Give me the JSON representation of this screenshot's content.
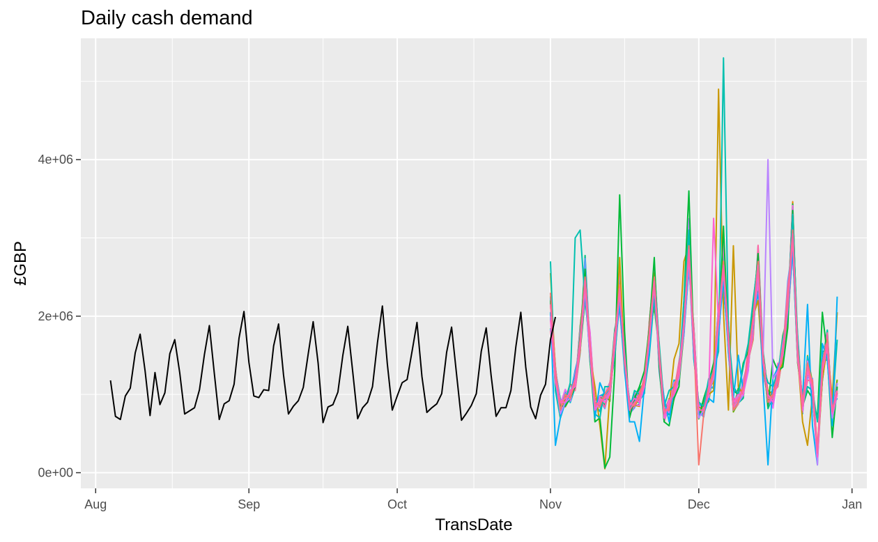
{
  "chart_data": {
    "type": "line",
    "title": "Daily cash demand",
    "xlabel": "TransDate",
    "ylabel": "£GBP",
    "x_ticks": [
      "Aug",
      "Sep",
      "Oct",
      "Nov",
      "Dec",
      "Jan"
    ],
    "y_ticks": [
      "0e+00",
      "2e+06",
      "4e+06"
    ],
    "x_range": [
      "2018-07-29",
      "2019-01-04"
    ],
    "ylim": [
      -200000,
      5550000
    ],
    "grid": true,
    "legend": "none",
    "history": {
      "color": "#000000",
      "start_date": "2018-08-04",
      "values": [
        1180000,
        720000,
        680000,
        980000,
        1080000,
        1530000,
        1770000,
        1300000,
        730000,
        1280000,
        870000,
        1020000,
        1520000,
        1700000,
        1280000,
        750000,
        790000,
        830000,
        1060000,
        1510000,
        1880000,
        1270000,
        680000,
        880000,
        920000,
        1130000,
        1720000,
        2060000,
        1410000,
        980000,
        960000,
        1060000,
        1050000,
        1620000,
        1900000,
        1250000,
        750000,
        850000,
        920000,
        1090000,
        1520000,
        1930000,
        1400000,
        640000,
        840000,
        870000,
        1030000,
        1500000,
        1870000,
        1290000,
        690000,
        830000,
        900000,
        1100000,
        1660000,
        2130000,
        1390000,
        800000,
        980000,
        1150000,
        1190000,
        1550000,
        1920000,
        1230000,
        770000,
        830000,
        880000,
        1010000,
        1540000,
        1860000,
        1260000,
        670000,
        760000,
        860000,
        1010000,
        1550000,
        1850000,
        1240000,
        720000,
        830000,
        830000,
        1050000,
        1610000,
        2050000,
        1350000,
        840000,
        690000,
        990000,
        1130000,
        1700000,
        1990000
      ]
    },
    "forecast": {
      "start_date": "2018-11-01",
      "base": [
        2100000,
        1250000,
        850000,
        950000,
        1000000,
        1150000,
        1650000,
        2450000,
        1600000,
        850000,
        900000,
        950000,
        1050000,
        1650000,
        2350000,
        1450000,
        820000,
        900000,
        950000,
        1150000,
        1750000,
        2450000,
        1500000,
        750000,
        850000,
        1050000,
        1250000,
        1900000,
        2850000,
        1650000,
        780000,
        820000,
        1050000,
        1250000,
        1950000,
        2650000,
        1700000,
        850000,
        950000,
        1050000,
        1450000,
        1950000,
        2650000,
        1450000,
        950000,
        950000,
        1250000,
        1550000,
        2150000,
        3050000,
        1550000,
        850000,
        1350000,
        1100000,
        250000,
        1350000,
        1650000,
        780000,
        1050000
      ],
      "series_colors": [
        "#F8766D",
        "#E58700",
        "#C99800",
        "#A3A500",
        "#6BB100",
        "#00BA38",
        "#00BF7D",
        "#00C0AF",
        "#00BCD8",
        "#00B0F6",
        "#619CFF",
        "#B983FF",
        "#E76BF3",
        "#FD61D1",
        "#FF67A4"
      ],
      "series": [
        {
          "color": "#C99800",
          "values": [
            2550000,
            1250000,
            700000,
            950000,
            1050000,
            1100000,
            1550000,
            2400000,
            1500000,
            1100000,
            600000,
            50000,
            1000000,
            1550000,
            2750000,
            1400000,
            850000,
            850000,
            950000,
            1100000,
            1600000,
            2550000,
            1450000,
            850000,
            850000,
            1450000,
            1650000,
            2700000,
            2900000,
            1550000,
            700000,
            900000,
            1000000,
            1050000,
            4900000,
            2050000,
            800000,
            2900000,
            1100000,
            1000000,
            1500000,
            2000000,
            2200000,
            1300000,
            1050000,
            1000000,
            1250000,
            1400000,
            1950000,
            3000000,
            1500000,
            650000,
            350000,
            1000000,
            150000,
            1200000,
            1600000,
            950000,
            2050000
          ]
        },
        {
          "color": "#00BA38",
          "values": [
            2200000,
            1150000,
            850000,
            850000,
            950000,
            1100000,
            1750000,
            2600000,
            1450000,
            650000,
            700000,
            60000,
            200000,
            1300000,
            3550000,
            1800000,
            700000,
            950000,
            1100000,
            1300000,
            1850000,
            2750000,
            1350000,
            650000,
            600000,
            950000,
            1100000,
            2200000,
            3600000,
            1600000,
            700000,
            950000,
            1150000,
            1400000,
            1800000,
            3150000,
            1650000,
            1050000,
            1000000,
            1400000,
            1550000,
            2050000,
            2800000,
            1500000,
            850000,
            1450000,
            1300000,
            1350000,
            1850000,
            3350000,
            1600000,
            850000,
            1050000,
            950000,
            700000,
            2050000,
            1500000,
            450000,
            1100000
          ]
        },
        {
          "color": "#00C0AF",
          "values": [
            2700000,
            1050000,
            700000,
            900000,
            1150000,
            3000000,
            3100000,
            2200000,
            1600000,
            750000,
            700000,
            1100000,
            1100000,
            1500000,
            2200000,
            1550000,
            800000,
            1050000,
            1000000,
            1050000,
            1500000,
            2250000,
            1650000,
            850000,
            1050000,
            1100000,
            1300000,
            2200000,
            3100000,
            1450000,
            900000,
            850000,
            1200000,
            1300000,
            1550000,
            5300000,
            1800000,
            1100000,
            1000000,
            1350000,
            1650000,
            2200000,
            2700000,
            1350000,
            1150000,
            1100000,
            1300000,
            1500000,
            2100000,
            3300000,
            1700000,
            850000,
            1100000,
            1050000,
            650000,
            1550000,
            1550000,
            800000,
            1700000
          ]
        },
        {
          "color": "#00B0F6",
          "values": [
            2050000,
            350000,
            700000,
            900000,
            1000000,
            1250000,
            1650000,
            2300000,
            1550000,
            700000,
            1150000,
            1000000,
            1050000,
            1600000,
            2150000,
            1300000,
            650000,
            650000,
            400000,
            1100000,
            1550000,
            2400000,
            1450000,
            950000,
            650000,
            1100000,
            1250000,
            1800000,
            2750000,
            1500000,
            750000,
            750000,
            950000,
            900000,
            1800000,
            2450000,
            1550000,
            950000,
            1500000,
            1050000,
            1450000,
            1850000,
            2600000,
            1150000,
            100000,
            1200000,
            1350000,
            1500000,
            2050000,
            2850000,
            1500000,
            950000,
            2150000,
            600000,
            100000,
            1650000,
            1450000,
            600000,
            2250000
          ]
        },
        {
          "color": "#B983FF",
          "values": [
            2000000,
            1200000,
            750000,
            900000,
            950000,
            1200000,
            1600000,
            2350000,
            1500000,
            800000,
            900000,
            950000,
            1000000,
            1600000,
            2300000,
            1450000,
            800000,
            900000,
            950000,
            1150000,
            1700000,
            2400000,
            1500000,
            700000,
            900000,
            1050000,
            1200000,
            1850000,
            2750000,
            1600000,
            700000,
            800000,
            1050000,
            1200000,
            1900000,
            2600000,
            1650000,
            850000,
            900000,
            1000000,
            1400000,
            1900000,
            2550000,
            1450000,
            4000000,
            1200000,
            1300000,
            1500000,
            2100000,
            3050000,
            1550000,
            800000,
            1300000,
            1050000,
            100000,
            1350000,
            1600000,
            700000,
            1000000
          ]
        },
        {
          "color": "#F8766D",
          "values": [
            2300000,
            1300000,
            800000,
            1000000,
            950000,
            1150000,
            1700000,
            2500000,
            1650000,
            900000,
            850000,
            1000000,
            1100000,
            1700000,
            2400000,
            1400000,
            900000,
            850000,
            1000000,
            1200000,
            1800000,
            2500000,
            1550000,
            800000,
            800000,
            1100000,
            1300000,
            1900000,
            2900000,
            1700000,
            100000,
            750000,
            1100000,
            1300000,
            2000000,
            2700000,
            1750000,
            800000,
            900000,
            1100000,
            1500000,
            2000000,
            2700000,
            1500000,
            900000,
            1000000,
            1200000,
            1600000,
            2200000,
            3100000,
            1600000,
            900000,
            1400000,
            1150000,
            300000,
            1400000,
            1700000,
            800000,
            1050000
          ]
        },
        {
          "color": "#FD61D1",
          "values": [
            1950000,
            1150000,
            900000,
            900000,
            1050000,
            1100000,
            1600000,
            2400000,
            1550000,
            800000,
            950000,
            900000,
            1000000,
            1600000,
            2300000,
            1500000,
            850000,
            950000,
            900000,
            1100000,
            1700000,
            2400000,
            1450000,
            700000,
            900000,
            1000000,
            1300000,
            1950000,
            2800000,
            1600000,
            800000,
            800000,
            1000000,
            3250000,
            1900000,
            2600000,
            1650000,
            900000,
            1000000,
            1000000,
            1400000,
            1900000,
            2600000,
            1400000,
            1000000,
            900000,
            1300000,
            1500000,
            2100000,
            3000000,
            1500000,
            800000,
            1300000,
            1050000,
            200000,
            1300000,
            1600000,
            750000,
            1000000
          ]
        },
        {
          "color": "#FF67A4",
          "values": [
            2150000,
            1200000,
            900000,
            950000,
            1000000,
            1200000,
            1650000,
            2450000,
            1600000,
            850000,
            900000,
            950000,
            1050000,
            1650000,
            2350000,
            1450000,
            800000,
            900000,
            950000,
            1150000,
            1750000,
            2450000,
            1500000,
            750000,
            850000,
            1050000,
            1250000,
            1900000,
            2850000,
            1650000,
            800000,
            800000,
            1050000,
            1250000,
            1950000,
            2650000,
            1700000,
            850000,
            950000,
            1050000,
            1450000,
            1950000,
            2650000,
            1450000,
            950000,
            950000,
            1250000,
            1550000,
            2150000,
            3050000,
            1550000,
            850000,
            1350000,
            1100000,
            250000,
            1350000,
            1650000,
            780000,
            1050000
          ]
        }
      ]
    }
  }
}
